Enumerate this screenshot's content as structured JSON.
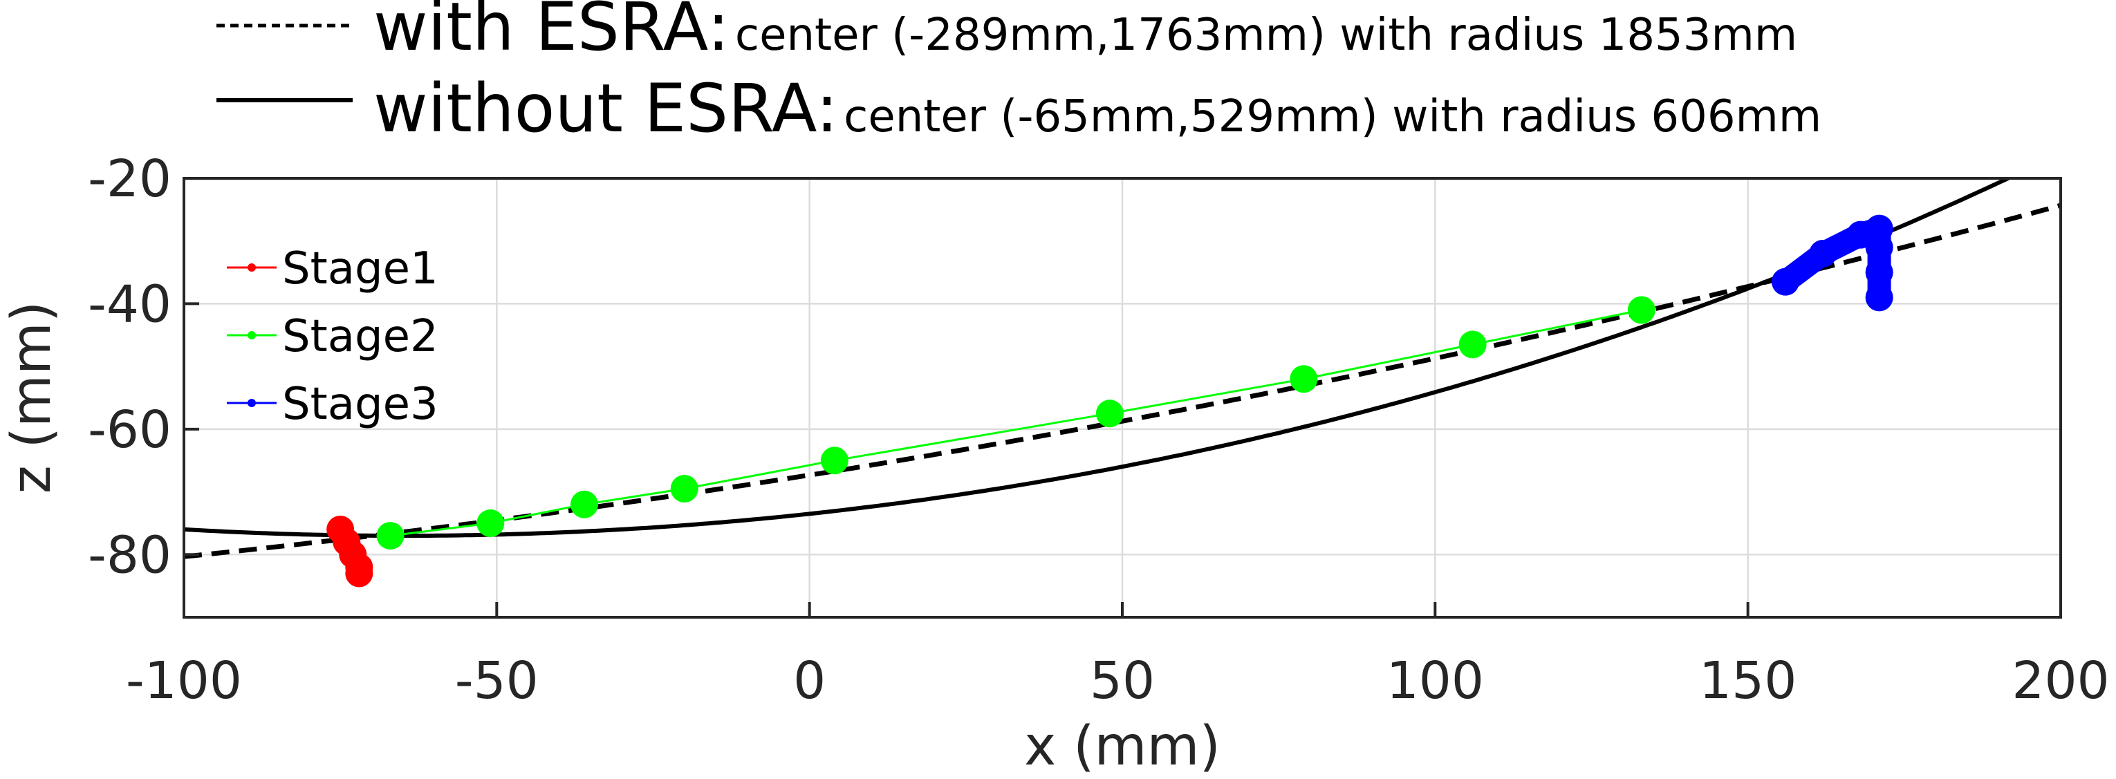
{
  "chart_data": {
    "type": "line",
    "xlabel": "x (mm)",
    "ylabel": "z (mm)",
    "xlim": [
      -100,
      200
    ],
    "ylim": [
      -90,
      -20
    ],
    "xticks": [
      -100,
      -50,
      0,
      50,
      100,
      150,
      200
    ],
    "yticks": [
      -80,
      -60,
      -40,
      -20
    ],
    "grid": true,
    "legend_placement": "top-left",
    "fit_legend": [
      {
        "key": "with_esra",
        "label": "with ESRA:",
        "detail": "center (-289mm,1763mm) with radius 1853mm",
        "style": "dashed",
        "color": "#000000",
        "center": [
          -289,
          1763
        ],
        "radius": 1853
      },
      {
        "key": "without_esra",
        "label": "without ESRA:",
        "detail": "center (-65mm,529mm) with radius 606mm",
        "style": "solid",
        "color": "#000000",
        "center": [
          -65,
          529
        ],
        "radius": 606
      }
    ],
    "series": [
      {
        "name": "Stage1",
        "color": "#ff0000",
        "points": [
          [
            -75,
            -76
          ],
          [
            -74,
            -78
          ],
          [
            -73,
            -80
          ],
          [
            -72,
            -82
          ],
          [
            -72,
            -83
          ]
        ]
      },
      {
        "name": "Stage2",
        "color": "#00ff00",
        "points": [
          [
            -67,
            -77
          ],
          [
            -51,
            -75
          ],
          [
            -36,
            -72
          ],
          [
            -20,
            -69.5
          ],
          [
            4,
            -65
          ],
          [
            48,
            -57.5
          ],
          [
            79,
            -52
          ],
          [
            106,
            -46.5
          ],
          [
            133,
            -41
          ]
        ]
      },
      {
        "name": "Stage3",
        "color": "#0000ff",
        "points": [
          [
            156,
            -36.5
          ],
          [
            162,
            -32
          ],
          [
            168,
            -29
          ],
          [
            171,
            -28
          ],
          [
            171,
            -31
          ],
          [
            171,
            -35
          ],
          [
            171,
            -39
          ]
        ]
      }
    ]
  }
}
